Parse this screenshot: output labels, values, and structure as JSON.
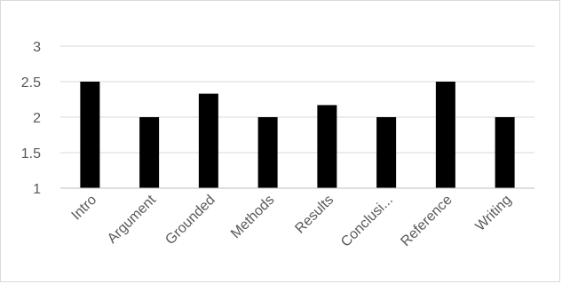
{
  "chart_data": {
    "type": "bar",
    "title": "",
    "xlabel": "",
    "ylabel": "",
    "categories": [
      "Intro",
      "Argument",
      "Grounded",
      "Methods",
      "Results",
      "Conclusi...",
      "Reference",
      "Writing"
    ],
    "values": [
      2.5,
      2.0,
      2.33,
      2.0,
      2.17,
      2.0,
      2.5,
      2.0
    ],
    "ylim": [
      1,
      3
    ],
    "yticks": [
      "1",
      "1.5",
      "2",
      "2.5",
      "3"
    ],
    "grid": true,
    "legend": "none",
    "colors": {
      "bar": "#000000",
      "grid": "#d9d9d9",
      "axis": "#bfbfbf",
      "text": "#595959"
    }
  }
}
